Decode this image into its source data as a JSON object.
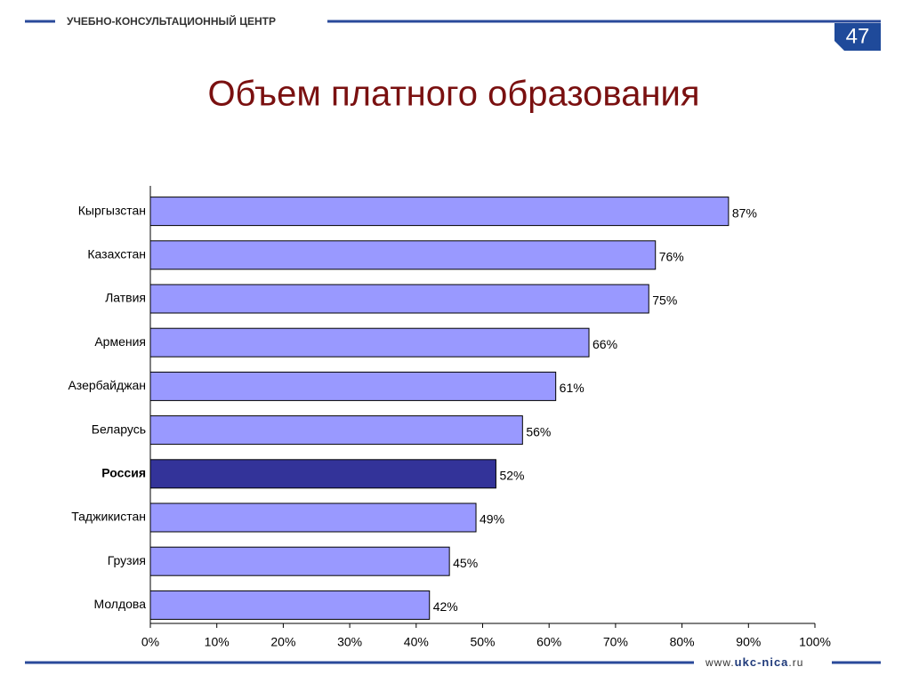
{
  "header": {
    "org": "УЧЕБНО-КОНСУЛЬТАЦИОННЫЙ ЦЕНТР",
    "page_number": "47"
  },
  "footer": {
    "prefix": "www.",
    "site": "ukc-nica",
    "suffix": ".ru"
  },
  "chart_data": {
    "type": "bar",
    "orientation": "horizontal",
    "title": "Объем платного образования",
    "categories": [
      "Кыргызстан",
      "Казахстан",
      "Латвия",
      "Армения",
      "Азербайджан",
      "Беларусь",
      "Россия",
      "Таджикистан",
      "Грузия",
      "Молдова"
    ],
    "values": [
      87,
      76,
      75,
      66,
      61,
      56,
      52,
      49,
      45,
      42
    ],
    "value_labels": [
      "87%",
      "76%",
      "75%",
      "66%",
      "61%",
      "56%",
      "52%",
      "49%",
      "45%",
      "42%"
    ],
    "color": "#9999ff",
    "highlight": {
      "index": 6,
      "color": "#333399"
    },
    "xlim": [
      0,
      100
    ],
    "xticks": [
      {
        "value": 0,
        "label": "0%"
      },
      {
        "value": 10,
        "label": "10%"
      },
      {
        "value": 20,
        "label": "20%"
      },
      {
        "value": 30,
        "label": "30%"
      },
      {
        "value": 40,
        "label": "40%"
      },
      {
        "value": 50,
        "label": "50%"
      },
      {
        "value": 60,
        "label": "60%"
      },
      {
        "value": 70,
        "label": "70%"
      },
      {
        "value": 80,
        "label": "80%"
      },
      {
        "value": 90,
        "label": "90%"
      },
      {
        "value": 100,
        "label": "100%"
      }
    ],
    "grid": false
  }
}
